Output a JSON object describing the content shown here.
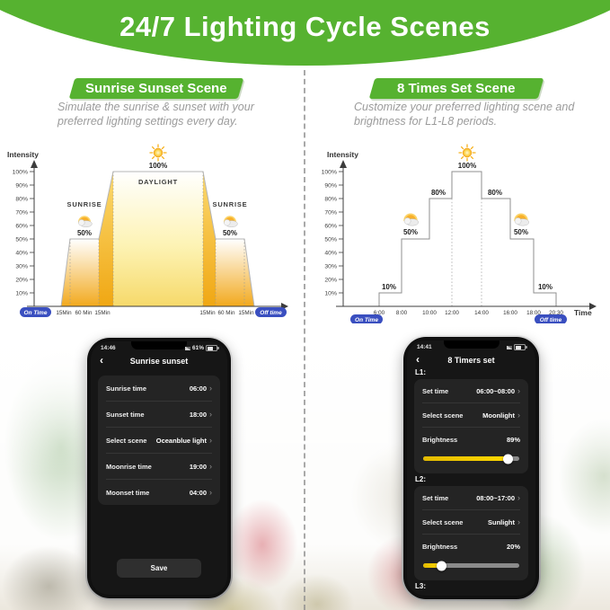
{
  "colors": {
    "brand_green": "#56b230",
    "pill_blue": "#3a4fc0",
    "amber": "#f2a91d",
    "daylight_yellow": "#f8e68a",
    "slider_yellow": "#ffd900",
    "phone_bg": "#161616",
    "card_bg": "#242424"
  },
  "ui": {
    "back_glyph": "‹",
    "chevron": "›"
  },
  "header": {
    "title": "24/7 Lighting Cycle Scenes"
  },
  "left_panel": {
    "ribbon": "Sunrise Sunset Scene",
    "description": "Simulate the sunrise & sunset with your preferred lighting settings every day."
  },
  "right_panel": {
    "ribbon": "8 Times Set Scene",
    "description": "Customize your preferred lighting scene and brightness for L1-L8 periods."
  },
  "chart_data": [
    {
      "type": "area",
      "title": "Sunrise Sunset Scene",
      "ylabel": "Intensity",
      "ylim": [
        0,
        100
      ],
      "yticks": [
        "100%",
        "90%",
        "80%",
        "70%",
        "60%",
        "50%",
        "40%",
        "30%",
        "20%",
        "10%"
      ],
      "x_segments": [
        "15Min",
        "60 Min",
        "15Min",
        "15Min",
        "60 Min",
        "15Min"
      ],
      "on_label": "On Time",
      "off_label": "Off time",
      "annotations": [
        {
          "label": "SUNRISE",
          "value": "50%"
        },
        {
          "label": "DAYLIGHT",
          "value": "100%"
        },
        {
          "label": "SUNRISE",
          "value": "50%"
        }
      ],
      "profile": [
        {
          "phase": "ramp-up",
          "duration": "15Min",
          "from": 0,
          "to": 50
        },
        {
          "phase": "sunrise-hold",
          "duration": "60 Min",
          "level": 50
        },
        {
          "phase": "ramp-up",
          "duration": "15Min",
          "from": 50,
          "to": 100
        },
        {
          "phase": "daylight-hold",
          "level": 100
        },
        {
          "phase": "ramp-down",
          "duration": "15Min",
          "from": 100,
          "to": 50
        },
        {
          "phase": "sunset-hold",
          "duration": "60 Min",
          "level": 50
        },
        {
          "phase": "ramp-down",
          "duration": "15Min",
          "from": 50,
          "to": 0
        }
      ]
    },
    {
      "type": "step",
      "title": "8 Times Set Scene",
      "ylabel": "Intensity",
      "xlabel": "Time",
      "ylim": [
        0,
        100
      ],
      "yticks": [
        "100%",
        "90%",
        "80%",
        "70%",
        "60%",
        "50%",
        "40%",
        "30%",
        "20%",
        "10%"
      ],
      "xticks": [
        "6:00",
        "8:00",
        "10:00",
        "12:00",
        "14:00",
        "16:00",
        "18:00",
        "20:30"
      ],
      "on_label": "On Time",
      "off_label": "Off time",
      "intervals": [
        {
          "from": "6:00",
          "to": "8:00",
          "value": 10,
          "label": "10%"
        },
        {
          "from": "8:00",
          "to": "10:00",
          "value": 50,
          "label": "50%"
        },
        {
          "from": "10:00",
          "to": "12:00",
          "value": 80,
          "label": "80%"
        },
        {
          "from": "12:00",
          "to": "14:00",
          "value": 100,
          "label": "100%"
        },
        {
          "from": "14:00",
          "to": "16:00",
          "value": 80,
          "label": "80%"
        },
        {
          "from": "16:00",
          "to": "18:00",
          "value": 50,
          "label": "50%"
        },
        {
          "from": "18:00",
          "to": "20:30",
          "value": 10,
          "label": "10%"
        }
      ]
    }
  ],
  "left_phone": {
    "status": {
      "time": "14:46",
      "battery": "61%"
    },
    "title": "Sunrise sunset",
    "rows": [
      {
        "label": "Sunrise time",
        "value": "06:00"
      },
      {
        "label": "Sunset time",
        "value": "18:00"
      },
      {
        "label": "Select scene",
        "value": "Oceanblue light"
      },
      {
        "label": "Moonrise time",
        "value": "19:00"
      },
      {
        "label": "Moonset time",
        "value": "04:00"
      }
    ],
    "save_label": "Save"
  },
  "right_phone": {
    "status": {
      "time": "14:41"
    },
    "title": "8 Timers set",
    "sections": [
      {
        "name": "L1:",
        "set_time_label": "Set time",
        "set_time": "06:00~08:00",
        "scene_label": "Select scene",
        "scene": "Moonlight",
        "brightness_label": "Brightness",
        "brightness_text": "89%",
        "brightness_pct": 89
      },
      {
        "name": "L2:",
        "set_time_label": "Set time",
        "set_time": "08:00~17:00",
        "scene_label": "Select scene",
        "scene": "Sunlight",
        "brightness_label": "Brightness",
        "brightness_text": "20%",
        "brightness_pct": 20
      },
      {
        "name": "L3:"
      }
    ]
  }
}
